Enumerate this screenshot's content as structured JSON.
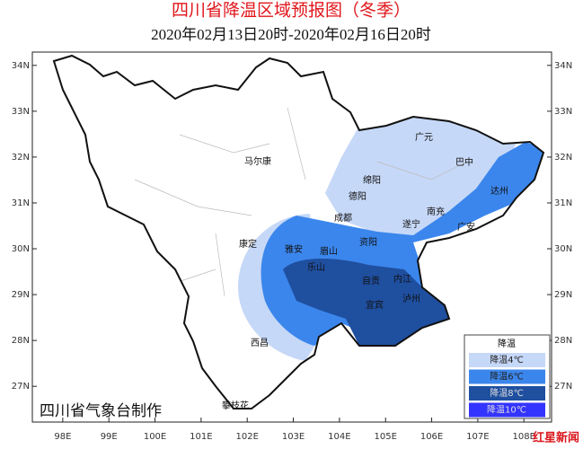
{
  "header": {
    "title": "四川省降温区域预报图（冬季）",
    "subtitle": "2020年02月13日20时-2020年02月16日20时"
  },
  "map": {
    "xlim": [
      97.34,
      108.6
    ],
    "ylim": [
      26.22,
      34.29
    ],
    "lon_ticks": [
      {
        "value": 98,
        "label": "98E"
      },
      {
        "value": 99,
        "label": "99E"
      },
      {
        "value": 100,
        "label": "100E"
      },
      {
        "value": 101,
        "label": "101E"
      },
      {
        "value": 102,
        "label": "102E"
      },
      {
        "value": 103,
        "label": "103E"
      },
      {
        "value": 104,
        "label": "104E"
      },
      {
        "value": 105,
        "label": "105E"
      },
      {
        "value": 106,
        "label": "106E"
      },
      {
        "value": 107,
        "label": "107E"
      },
      {
        "value": 108,
        "label": "108E"
      }
    ],
    "lat_ticks": [
      {
        "value": 27,
        "label": "27N"
      },
      {
        "value": 28,
        "label": "28N"
      },
      {
        "value": 29,
        "label": "29N"
      },
      {
        "value": 30,
        "label": "30N"
      },
      {
        "value": 31,
        "label": "31N"
      },
      {
        "value": 32,
        "label": "32N"
      },
      {
        "value": 33,
        "label": "33N"
      },
      {
        "value": 34,
        "label": "34N"
      }
    ],
    "cities": [
      "马尔康",
      "广元",
      "巴中",
      "绵阳",
      "德阳",
      "达州",
      "成都",
      "南充",
      "遂宁",
      "广安",
      "康定",
      "雅安",
      "眉山",
      "资阳",
      "乐山",
      "内江",
      "自贡",
      "宜宾",
      "泸州",
      "西昌",
      "攀枝花"
    ]
  },
  "legend": {
    "title": "降温",
    "items": [
      {
        "label": "降温4℃",
        "color": "#c6d8f8"
      },
      {
        "label": "降温6℃",
        "color": "#3b86ec"
      },
      {
        "label": "降温8℃",
        "color": "#1f4f9f"
      },
      {
        "label": "降温10℃",
        "color": "#3434ff"
      }
    ]
  },
  "credit": "四川省气象台制作",
  "watermark": "红星新闻"
}
